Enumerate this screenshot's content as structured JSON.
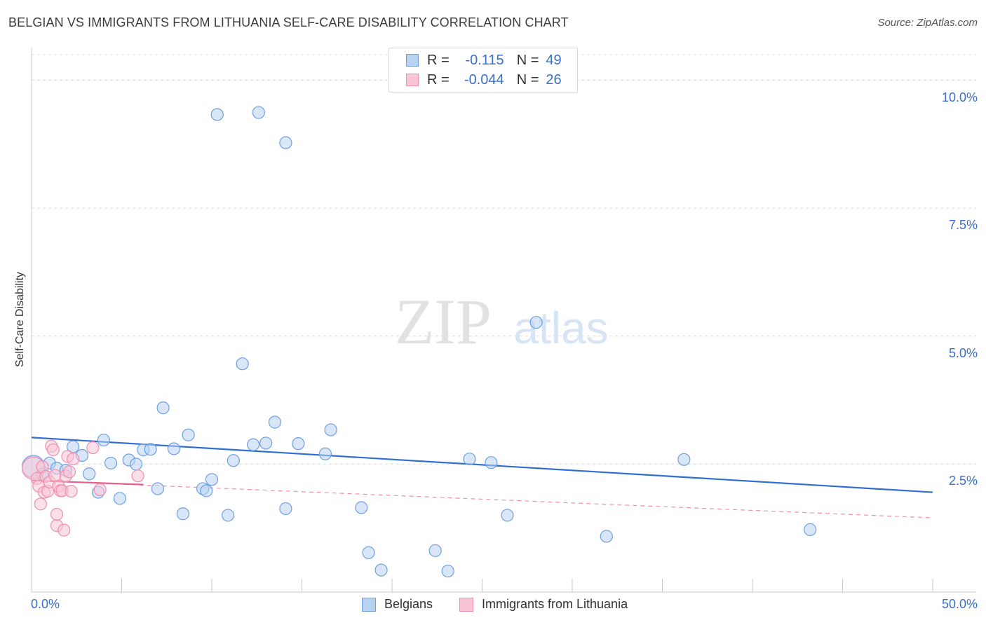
{
  "title": "BELGIAN VS IMMIGRANTS FROM LITHUANIA SELF-CARE DISABILITY CORRELATION CHART",
  "source": "Source: ZipAtlas.com",
  "watermark": {
    "zip": "ZIP",
    "atlas": "atlas"
  },
  "stats_legend": {
    "rows": [
      {
        "r_label": "R =",
        "r_value": "-0.115",
        "n_label": "N =",
        "n_value": "49",
        "fill": "#b8d2f2",
        "stroke": "#6f9fe0"
      },
      {
        "r_label": "R =",
        "r_value": "-0.044",
        "n_label": "N =",
        "n_value": "26",
        "fill": "#f9c5d5",
        "stroke": "#ef8fae"
      }
    ]
  },
  "bottom_legend": {
    "belgians": "Belgians",
    "lithuania": "Immigrants from Lithuania"
  },
  "colors": {
    "blue_fill": "#b8d2f2",
    "blue_stroke": "#6f9fe0",
    "blue_line": "#2f6fd0",
    "pink_fill": "#f9c5d5",
    "pink_stroke": "#ef8fae",
    "pink_line": "#e4628d",
    "tick_text": "#3b6fc7",
    "grid": "#dcdcdc"
  },
  "chart_data": {
    "type": "scatter",
    "title": "BELGIAN VS IMMIGRANTS FROM LITHUANIA SELF-CARE DISABILITY CORRELATION CHART",
    "xlabel": "",
    "ylabel": "Self-Care Disability",
    "xlim": [
      0,
      50
    ],
    "ylim": [
      0,
      10.5
    ],
    "x_tick_labels": [
      "0.0%",
      "50.0%"
    ],
    "y_ticks": [
      2.5,
      5.0,
      7.5,
      10.0
    ],
    "y_tick_labels": [
      "2.5%",
      "5.0%",
      "7.5%",
      "10.0%"
    ],
    "grid": true,
    "series": [
      {
        "name": "Belgians",
        "color": "#6f9fe0",
        "trend": {
          "x": [
            0,
            50
          ],
          "y": [
            3.02,
            1.95
          ]
        },
        "points": [
          {
            "x": 0.1,
            "y": 2.45,
            "big": true
          },
          {
            "x": 0.6,
            "y": 2.3
          },
          {
            "x": 1.0,
            "y": 2.52
          },
          {
            "x": 1.4,
            "y": 2.42
          },
          {
            "x": 1.9,
            "y": 2.38
          },
          {
            "x": 2.3,
            "y": 2.84
          },
          {
            "x": 2.8,
            "y": 2.67
          },
          {
            "x": 3.2,
            "y": 2.31
          },
          {
            "x": 3.7,
            "y": 1.95
          },
          {
            "x": 4.0,
            "y": 2.97
          },
          {
            "x": 4.4,
            "y": 2.52
          },
          {
            "x": 4.9,
            "y": 1.83
          },
          {
            "x": 5.4,
            "y": 2.58
          },
          {
            "x": 5.8,
            "y": 2.5
          },
          {
            "x": 6.2,
            "y": 2.78
          },
          {
            "x": 6.6,
            "y": 2.79
          },
          {
            "x": 7.0,
            "y": 2.02
          },
          {
            "x": 7.3,
            "y": 3.6
          },
          {
            "x": 7.9,
            "y": 2.8
          },
          {
            "x": 8.4,
            "y": 1.53
          },
          {
            "x": 8.7,
            "y": 3.07
          },
          {
            "x": 9.5,
            "y": 2.02
          },
          {
            "x": 9.7,
            "y": 1.98
          },
          {
            "x": 10.0,
            "y": 2.2
          },
          {
            "x": 10.3,
            "y": 9.33
          },
          {
            "x": 10.9,
            "y": 1.5
          },
          {
            "x": 11.2,
            "y": 2.57
          },
          {
            "x": 11.7,
            "y": 4.46
          },
          {
            "x": 12.3,
            "y": 2.88
          },
          {
            "x": 12.6,
            "y": 9.37
          },
          {
            "x": 13.0,
            "y": 2.91
          },
          {
            "x": 13.5,
            "y": 3.32
          },
          {
            "x": 14.1,
            "y": 1.63
          },
          {
            "x": 14.1,
            "y": 8.78
          },
          {
            "x": 14.8,
            "y": 2.9
          },
          {
            "x": 16.3,
            "y": 2.7
          },
          {
            "x": 16.6,
            "y": 3.17
          },
          {
            "x": 18.3,
            "y": 1.65
          },
          {
            "x": 18.7,
            "y": 0.77
          },
          {
            "x": 19.4,
            "y": 0.43
          },
          {
            "x": 22.4,
            "y": 0.81
          },
          {
            "x": 23.1,
            "y": 0.41
          },
          {
            "x": 24.3,
            "y": 2.6
          },
          {
            "x": 25.5,
            "y": 2.53
          },
          {
            "x": 26.4,
            "y": 1.5
          },
          {
            "x": 28.0,
            "y": 5.27
          },
          {
            "x": 31.9,
            "y": 1.09
          },
          {
            "x": 36.2,
            "y": 2.59
          },
          {
            "x": 43.2,
            "y": 1.22
          }
        ]
      },
      {
        "name": "Immigrants from Lithuania",
        "color": "#ef8fae",
        "trend_solid": {
          "x": [
            0,
            6.2
          ],
          "y": [
            2.18,
            2.1
          ]
        },
        "trend_dashed": {
          "x": [
            0,
            50
          ],
          "y": [
            2.18,
            1.45
          ]
        },
        "points": [
          {
            "x": 0.1,
            "y": 2.42,
            "big": true
          },
          {
            "x": 0.3,
            "y": 2.22
          },
          {
            "x": 0.4,
            "y": 2.07
          },
          {
            "x": 0.5,
            "y": 1.72
          },
          {
            "x": 0.6,
            "y": 2.45
          },
          {
            "x": 0.7,
            "y": 1.95
          },
          {
            "x": 0.8,
            "y": 2.26
          },
          {
            "x": 0.9,
            "y": 1.97
          },
          {
            "x": 1.0,
            "y": 2.15
          },
          {
            "x": 1.1,
            "y": 2.85
          },
          {
            "x": 1.2,
            "y": 2.78
          },
          {
            "x": 1.3,
            "y": 2.28
          },
          {
            "x": 1.4,
            "y": 1.3
          },
          {
            "x": 1.4,
            "y": 1.52
          },
          {
            "x": 1.5,
            "y": 2.07
          },
          {
            "x": 1.6,
            "y": 1.98
          },
          {
            "x": 1.7,
            "y": 1.98
          },
          {
            "x": 1.8,
            "y": 1.21
          },
          {
            "x": 1.9,
            "y": 2.27
          },
          {
            "x": 2.0,
            "y": 2.65
          },
          {
            "x": 2.1,
            "y": 2.35
          },
          {
            "x": 2.2,
            "y": 1.97
          },
          {
            "x": 2.3,
            "y": 2.6
          },
          {
            "x": 3.4,
            "y": 2.82
          },
          {
            "x": 3.8,
            "y": 2.0
          },
          {
            "x": 5.9,
            "y": 2.27
          }
        ]
      }
    ]
  }
}
